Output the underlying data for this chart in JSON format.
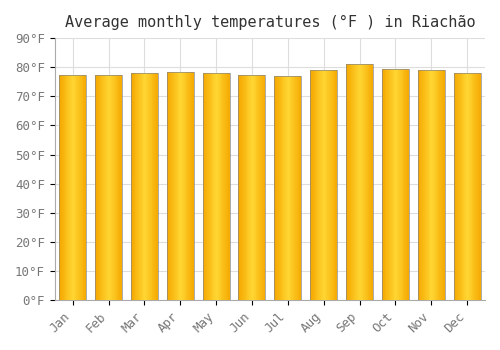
{
  "title": "Average monthly temperatures (°F ) in Riachão",
  "months": [
    "Jan",
    "Feb",
    "Mar",
    "Apr",
    "May",
    "Jun",
    "Jul",
    "Aug",
    "Sep",
    "Oct",
    "Nov",
    "Dec"
  ],
  "values": [
    77.5,
    77.5,
    78.0,
    78.5,
    78.0,
    77.5,
    77.0,
    79.0,
    81.0,
    79.5,
    79.0,
    78.0
  ],
  "bar_color_center": "#FFCC33",
  "bar_color_edge": "#F5A800",
  "bar_border_color": "#888888",
  "ylim": [
    0,
    90
  ],
  "yticks": [
    0,
    10,
    20,
    30,
    40,
    50,
    60,
    70,
    80,
    90
  ],
  "ytick_labels": [
    "0°F",
    "10°F",
    "20°F",
    "30°F",
    "40°F",
    "50°F",
    "60°F",
    "70°F",
    "80°F",
    "90°F"
  ],
  "background_color": "#FFFFFF",
  "plot_bg_color": "#FFFFFF",
  "grid_color": "#DDDDDD",
  "title_fontsize": 11,
  "tick_fontsize": 9,
  "tick_color": "#777777"
}
